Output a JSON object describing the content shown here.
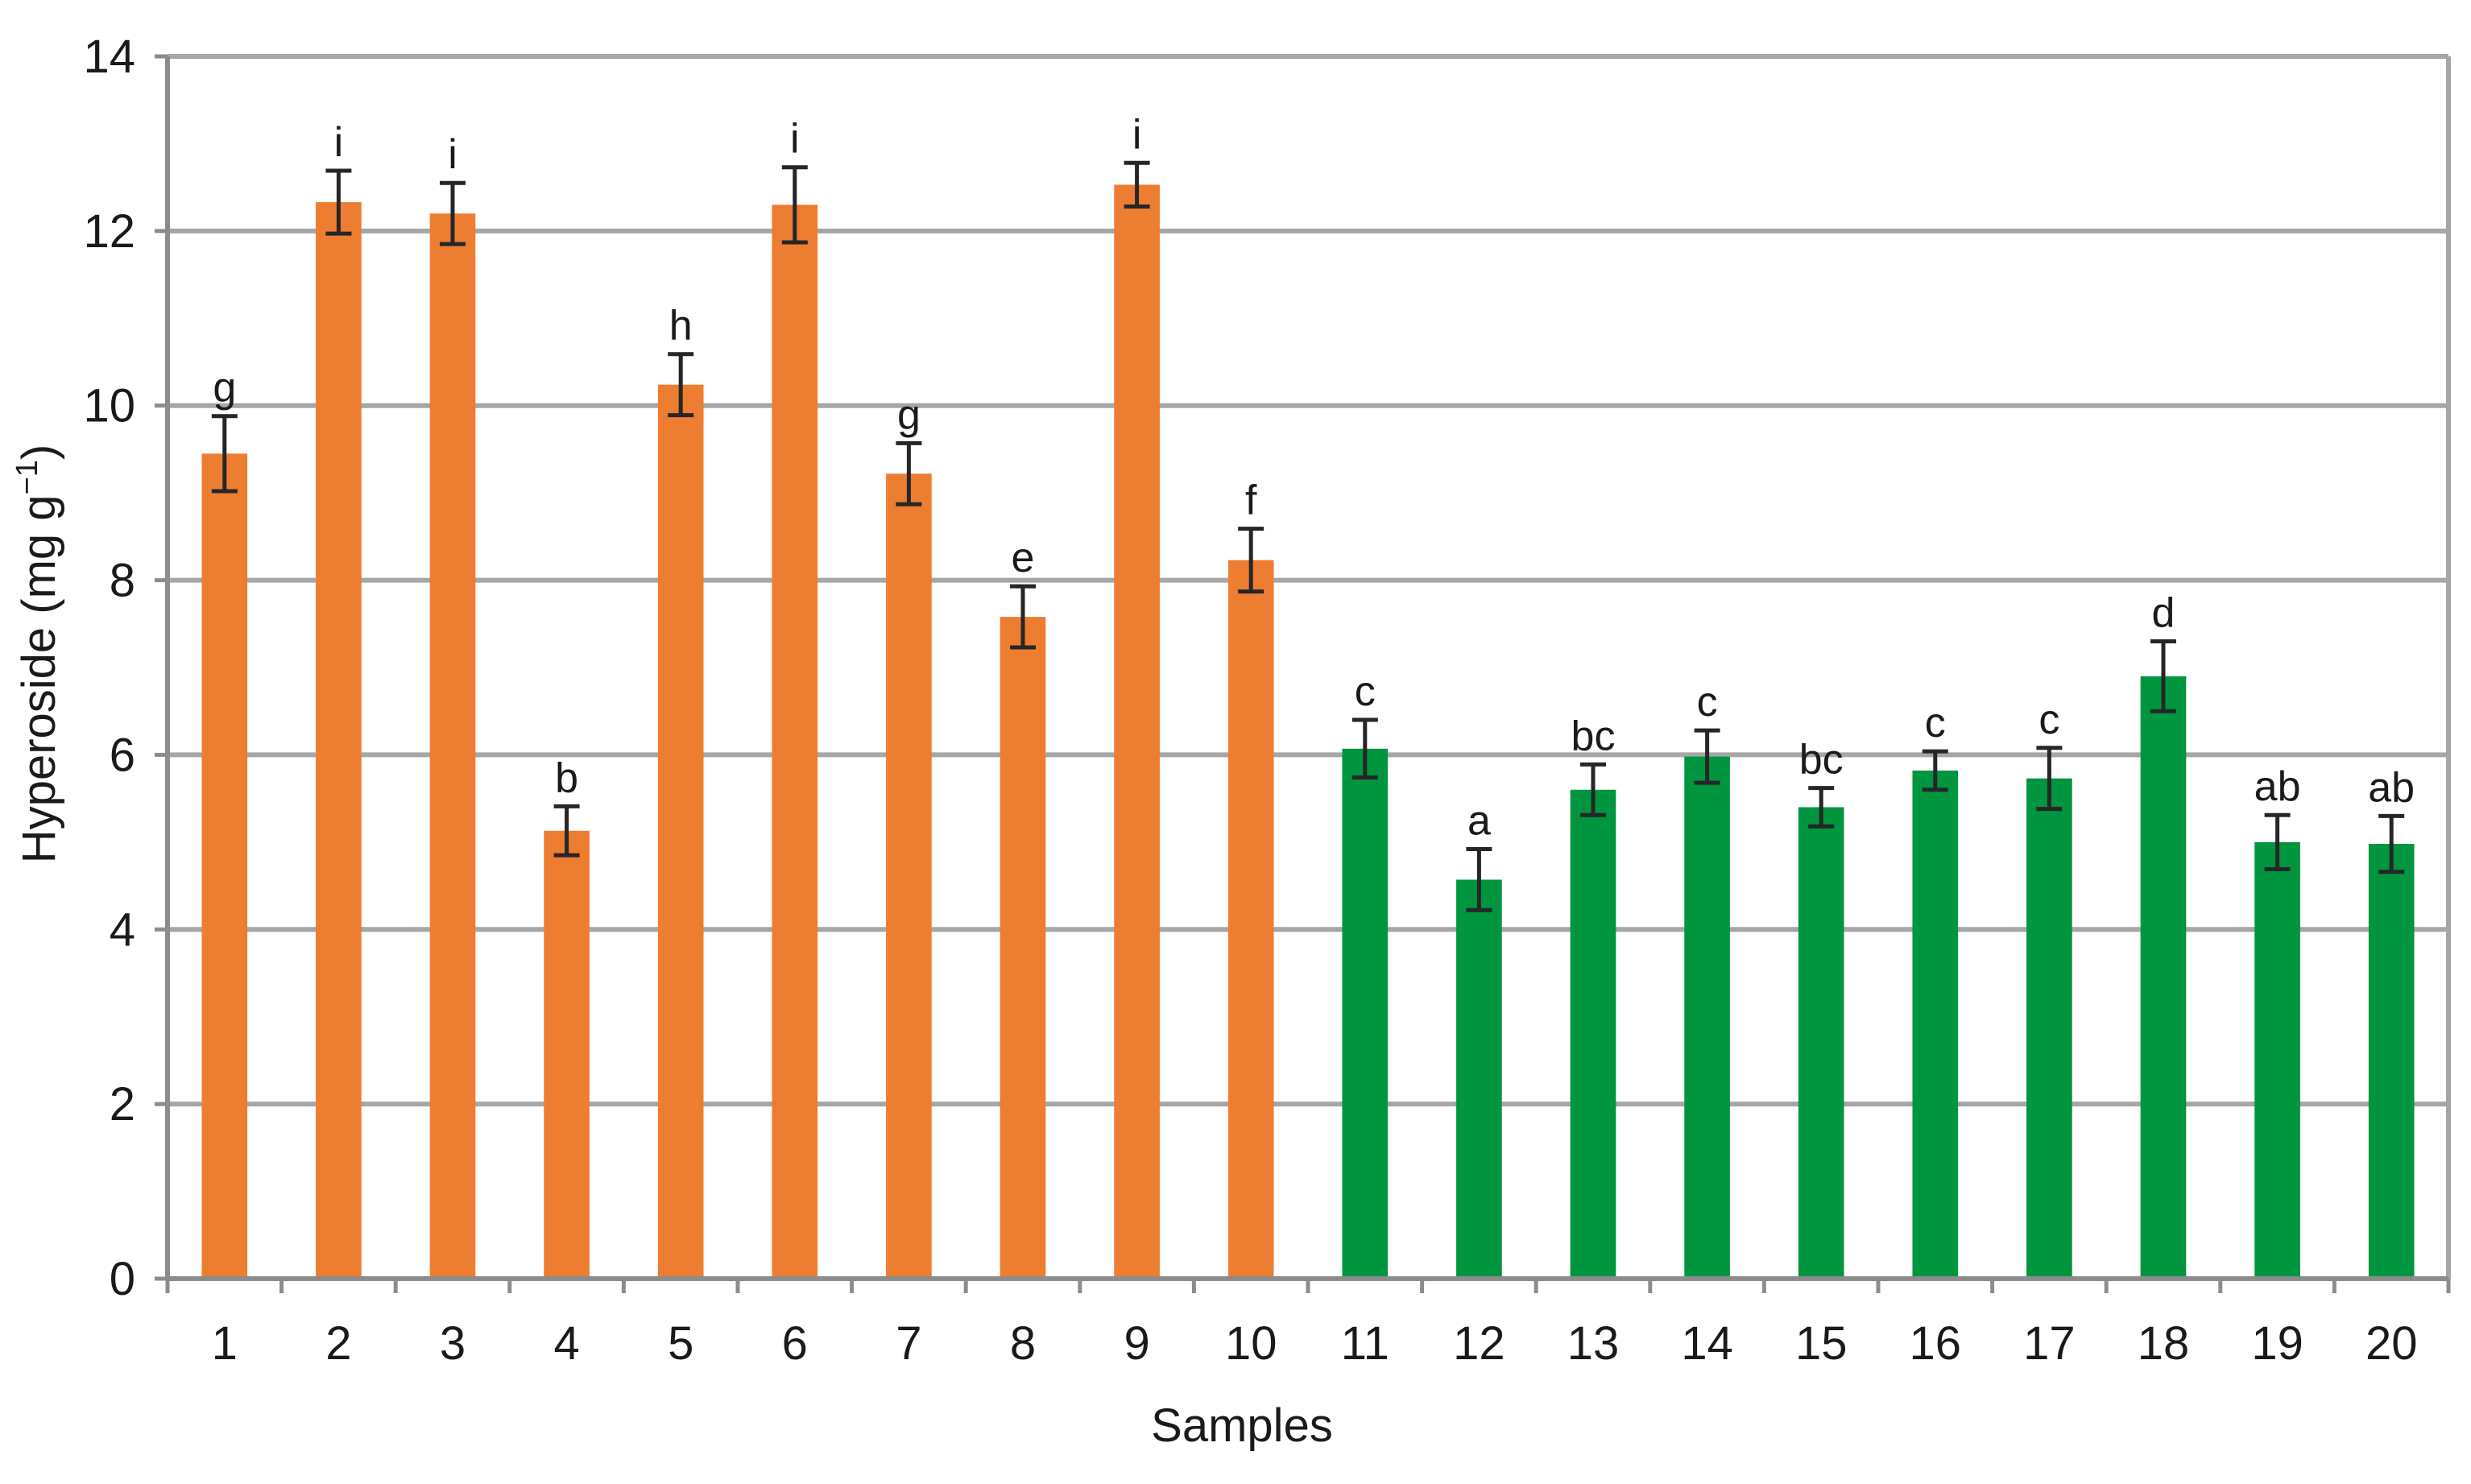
{
  "colors": {
    "group_a": "#ED7D31",
    "group_b": "#00953F",
    "gridline": "#A6A6A6",
    "axis": "#8C8C8C",
    "error_bar": "#262626"
  },
  "chart_data": {
    "type": "bar",
    "xlabel": "Samples",
    "ylabel": "Hyperoside (mg g",
    "ylabel_superscript": "−1",
    "ylabel_close": ")",
    "ylim": [
      0,
      14
    ],
    "yticks": [
      0,
      2,
      4,
      6,
      8,
      10,
      12,
      14
    ],
    "grid": true,
    "categories": [
      "1",
      "2",
      "3",
      "4",
      "5",
      "6",
      "7",
      "8",
      "9",
      "10",
      "11",
      "12",
      "13",
      "14",
      "15",
      "16",
      "17",
      "18",
      "19",
      "20"
    ],
    "values": [
      9.45,
      12.33,
      12.2,
      5.13,
      10.24,
      12.3,
      9.22,
      7.58,
      12.53,
      8.23,
      6.07,
      4.57,
      5.6,
      5.98,
      5.4,
      5.82,
      5.73,
      6.9,
      5.0,
      4.98
    ],
    "errors": [
      0.43,
      0.36,
      0.35,
      0.28,
      0.35,
      0.43,
      0.35,
      0.35,
      0.25,
      0.36,
      0.33,
      0.35,
      0.29,
      0.3,
      0.22,
      0.22,
      0.35,
      0.4,
      0.31,
      0.32
    ],
    "significance_labels": [
      "g",
      "i",
      "i",
      "b",
      "h",
      "i",
      "g",
      "e",
      "i",
      "f",
      "c",
      "a",
      "bc",
      "c",
      "bc",
      "c",
      "c",
      "d",
      "ab",
      "ab"
    ],
    "bar_groups": [
      "group_a",
      "group_a",
      "group_a",
      "group_a",
      "group_a",
      "group_a",
      "group_a",
      "group_a",
      "group_a",
      "group_a",
      "group_b",
      "group_b",
      "group_b",
      "group_b",
      "group_b",
      "group_b",
      "group_b",
      "group_b",
      "group_b",
      "group_b"
    ]
  }
}
